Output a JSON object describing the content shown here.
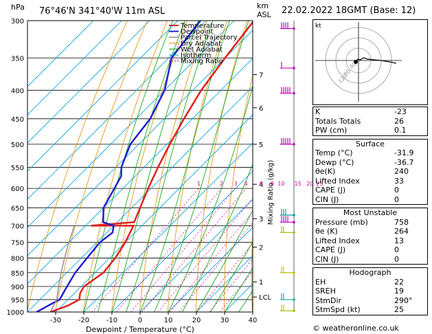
{
  "header": {
    "hpa_label": "hPa",
    "location": "76°46'N  341°40'W  11m  ASL",
    "km_label": "km",
    "asl_label": "ASL",
    "datetime": "22.02.2022  18GMT  (Base: 12)"
  },
  "chart_data": {
    "type": "line",
    "title": "",
    "xlabel": "Dewpoint / Temperature (°C)",
    "ylabel": "hPa",
    "y_axis_right_label": "Mixing Ratio (g/kg)",
    "xlim": [
      -40,
      40
    ],
    "ylim": [
      1000,
      300
    ],
    "pressure_ticks": [
      300,
      350,
      400,
      450,
      500,
      550,
      600,
      650,
      700,
      750,
      800,
      850,
      900,
      950,
      1000
    ],
    "temp_ticks": [
      -30,
      -20,
      -10,
      0,
      10,
      20,
      30,
      40
    ],
    "km_ticks": [
      {
        "label": "7",
        "p": 375
      },
      {
        "label": "6",
        "p": 430
      },
      {
        "label": "5",
        "p": 500
      },
      {
        "label": "4",
        "p": 590
      },
      {
        "label": "3",
        "p": 680
      },
      {
        "label": "2",
        "p": 765
      },
      {
        "label": "1",
        "p": 883
      },
      {
        "label": "LCL",
        "p": 940
      }
    ],
    "mixing_ratio_labels": [
      "1",
      "2",
      "3",
      "4",
      "6",
      "8",
      "10",
      "15",
      "20",
      "25"
    ],
    "legend": [
      "Temperature",
      "Dewpoint",
      "Parcel Trajectory",
      "Dry Adiabat",
      "Wet Adiabat",
      "Isotherm",
      "Mixing Ratio"
    ],
    "legend_position": "top-center",
    "series": [
      {
        "name": "Temperature",
        "color": "#e02020",
        "points": [
          [
            1000,
            -31.9
          ],
          [
            975,
            -28
          ],
          [
            950,
            -26
          ],
          [
            925,
            -28
          ],
          [
            900,
            -29
          ],
          [
            850,
            -27
          ],
          [
            800,
            -28
          ],
          [
            750,
            -30
          ],
          [
            700,
            -33
          ],
          [
            700,
            -48
          ],
          [
            690,
            -34
          ],
          [
            650,
            -37
          ],
          [
            600,
            -41
          ],
          [
            550,
            -45
          ],
          [
            500,
            -49
          ],
          [
            450,
            -53
          ],
          [
            400,
            -57
          ],
          [
            350,
            -60
          ],
          [
            300,
            -63
          ]
        ]
      },
      {
        "name": "Dewpoint",
        "color": "#2020d0",
        "points": [
          [
            1000,
            -36.7
          ],
          [
            975,
            -35
          ],
          [
            950,
            -33
          ],
          [
            925,
            -34
          ],
          [
            900,
            -35
          ],
          [
            850,
            -37
          ],
          [
            800,
            -38
          ],
          [
            750,
            -39
          ],
          [
            720,
            -38
          ],
          [
            700,
            -40
          ],
          [
            690,
            -45
          ],
          [
            650,
            -50
          ],
          [
            600,
            -53
          ],
          [
            570,
            -55
          ],
          [
            550,
            -58
          ],
          [
            530,
            -60
          ],
          [
            500,
            -63
          ],
          [
            450,
            -65
          ],
          [
            400,
            -70
          ],
          [
            350,
            -79
          ],
          [
            300,
            -82
          ]
        ]
      },
      {
        "name": "Parcel Trajectory",
        "color": "#909090",
        "points": [
          [
            1000,
            -31.9
          ],
          [
            950,
            -34
          ],
          [
            900,
            -38
          ],
          [
            850,
            -42
          ],
          [
            800,
            -46
          ],
          [
            750,
            -50
          ],
          [
            700,
            -54
          ]
        ]
      }
    ]
  },
  "stats": {
    "k": {
      "label": "K",
      "value": "-23"
    },
    "totals": {
      "label": "Totals Totals",
      "value": "26"
    },
    "pw": {
      "label": "PW (cm)",
      "value": "0.1"
    },
    "surface_title": "Surface",
    "surface": [
      {
        "label": "Temp (°C)",
        "value": "-31.9"
      },
      {
        "label": "Dewp (°C)",
        "value": "-36.7"
      },
      {
        "label": "θe(K)",
        "value": "240"
      },
      {
        "label": "Lifted Index",
        "value": "33"
      },
      {
        "label": "CAPE (J)",
        "value": "0"
      },
      {
        "label": "CIN (J)",
        "value": "0"
      }
    ],
    "unstable_title": "Most Unstable",
    "unstable": [
      {
        "label": "Pressure (mb)",
        "value": "758"
      },
      {
        "label": "θe (K)",
        "value": "264"
      },
      {
        "label": "Lifted Index",
        "value": "13"
      },
      {
        "label": "CAPE (J)",
        "value": "0"
      },
      {
        "label": "CIN (J)",
        "value": "0"
      }
    ],
    "hodo_title": "Hodograph",
    "hodo": [
      {
        "label": "EH",
        "value": "22"
      },
      {
        "label": "SREH",
        "value": "19"
      },
      {
        "label": "StmDir",
        "value": "290°"
      },
      {
        "label": "StmSpd (kt)",
        "value": "25"
      }
    ]
  },
  "hodograph": {
    "unit_label": "kt",
    "ring_labels": [
      "40",
      "80",
      "120"
    ]
  },
  "credit": "© weatheronline.co.uk",
  "colors": {
    "temperature": "#e02020",
    "dewpoint": "#2020d0",
    "parcel": "#909090",
    "dry_adiabat": "#e08a00",
    "wet_adiabat": "#00a000",
    "isotherm": "#00a0e0",
    "mixing_ratio": "#d000a0",
    "wind_barb": "#c000c0"
  }
}
